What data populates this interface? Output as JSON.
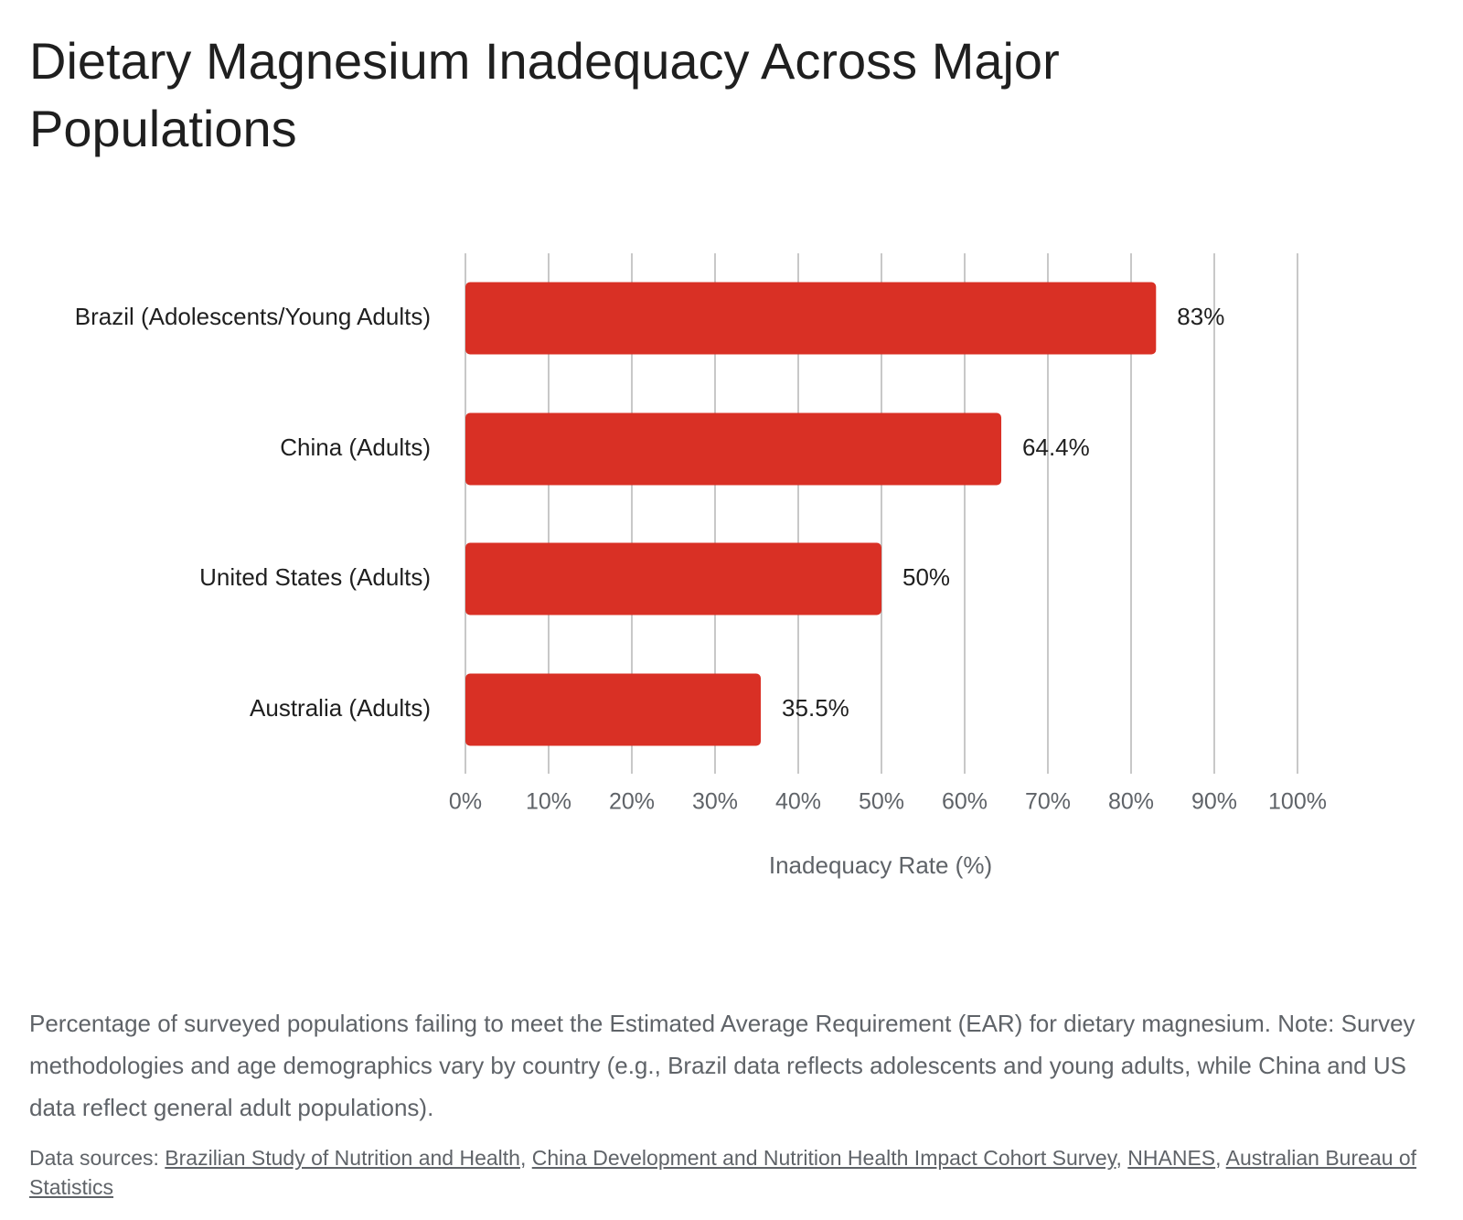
{
  "title": "Dietary Magnesium Inadequacy Across Major Populations",
  "caption": "Percentage of surveyed populations failing to meet the Estimated Average Requirement (EAR) for dietary magnesium. Note: Survey methodologies and age demographics vary by country (e.g., Brazil data reflects adolescents and young adults, while China and US data reflect general adult populations).",
  "sources": {
    "prefix": "Data sources: ",
    "links": [
      "Brazilian Study of Nutrition and Health",
      "China Development and Nutrition Health Impact Cohort Survey",
      "NHANES",
      "Australian Bureau of Statistics"
    ],
    "separator": ", "
  },
  "colors": {
    "bar": "#d93025",
    "grid": "#c8c8c8",
    "text": "#1f1f1f",
    "muted": "#5f6368"
  },
  "chart_data": {
    "type": "bar",
    "orientation": "horizontal",
    "categories": [
      "Brazil (Adolescents/Young Adults)",
      "China (Adults)",
      "United States (Adults)",
      "Australia (Adults)"
    ],
    "values": [
      83,
      64.4,
      50,
      35.5
    ],
    "value_labels": [
      "83%",
      "64.4%",
      "50%",
      "35.5%"
    ],
    "xlabel": "Inadequacy Rate (%)",
    "ylabel": "",
    "xlim": [
      0,
      100
    ],
    "ticks": [
      0,
      10,
      20,
      30,
      40,
      50,
      60,
      70,
      80,
      90,
      100
    ],
    "tick_labels": [
      "0%",
      "10%",
      "20%",
      "30%",
      "40%",
      "50%",
      "60%",
      "70%",
      "80%",
      "90%",
      "100%"
    ],
    "grid": true,
    "legend": "none"
  }
}
